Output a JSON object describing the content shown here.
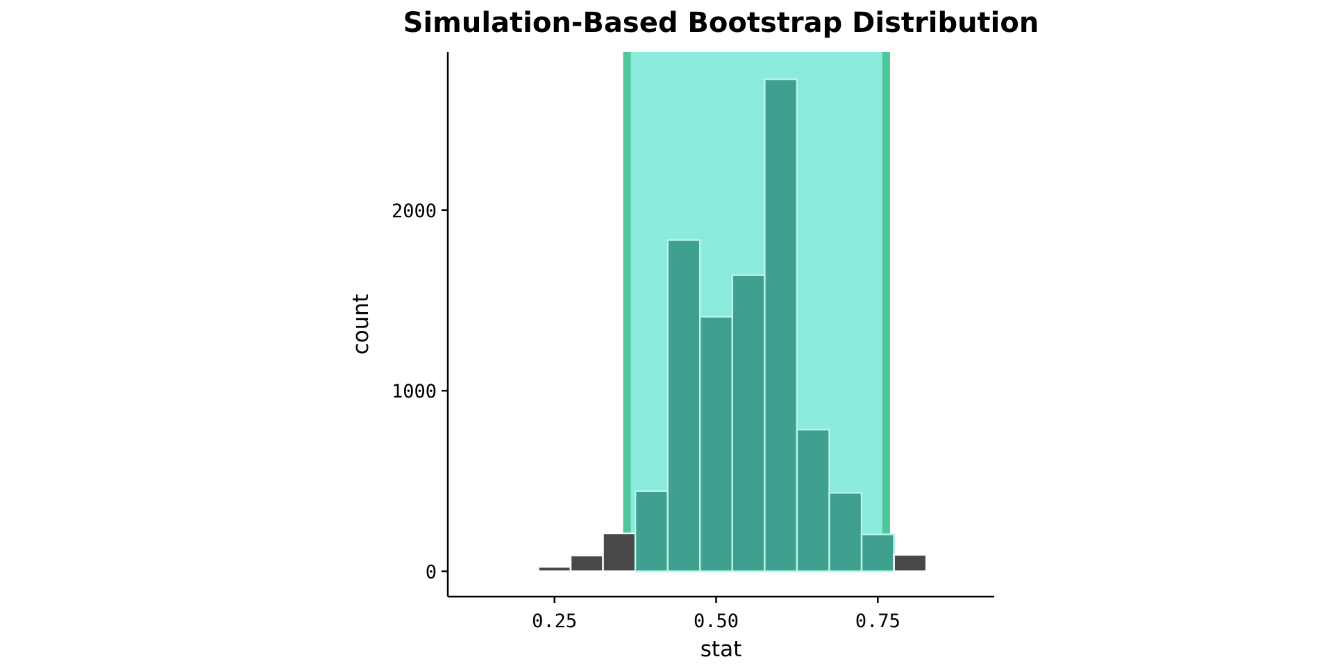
{
  "chart_data": {
    "type": "bar",
    "title": "Simulation-Based Bootstrap Distribution",
    "xlabel": "stat",
    "ylabel": "count",
    "xlim": [
      0.085,
      0.93
    ],
    "ylim": [
      -140,
      2875
    ],
    "x_ticks": [
      {
        "value": 0.25,
        "label": "0.25"
      },
      {
        "value": 0.5,
        "label": "0.50"
      },
      {
        "value": 0.75,
        "label": "0.75"
      }
    ],
    "y_ticks": [
      {
        "value": 0,
        "label": "0"
      },
      {
        "value": 1000,
        "label": "1000"
      },
      {
        "value": 2000,
        "label": "2000"
      }
    ],
    "bin_width": 0.05,
    "bins": [
      {
        "center": 0.25,
        "count": 25
      },
      {
        "center": 0.3,
        "count": 88
      },
      {
        "center": 0.35,
        "count": 210
      },
      {
        "center": 0.4,
        "count": 445
      },
      {
        "center": 0.45,
        "count": 1835
      },
      {
        "center": 0.5,
        "count": 1410
      },
      {
        "center": 0.55,
        "count": 1640
      },
      {
        "center": 0.6,
        "count": 2725
      },
      {
        "center": 0.65,
        "count": 785
      },
      {
        "center": 0.7,
        "count": 435
      },
      {
        "center": 0.75,
        "count": 205
      },
      {
        "center": 0.8,
        "count": 92
      }
    ],
    "confidence_interval": {
      "lower": 0.362,
      "upper": 0.763
    },
    "colors": {
      "bar_outside": "#484848",
      "bar_inside": "#3fa08f",
      "bar_outline": "#ffffff",
      "bar_outline_inside": "#b8f5e8",
      "ci_fill": "#8aeadb",
      "ci_line": "#4ec79c"
    },
    "grid": false,
    "legend": "none"
  }
}
